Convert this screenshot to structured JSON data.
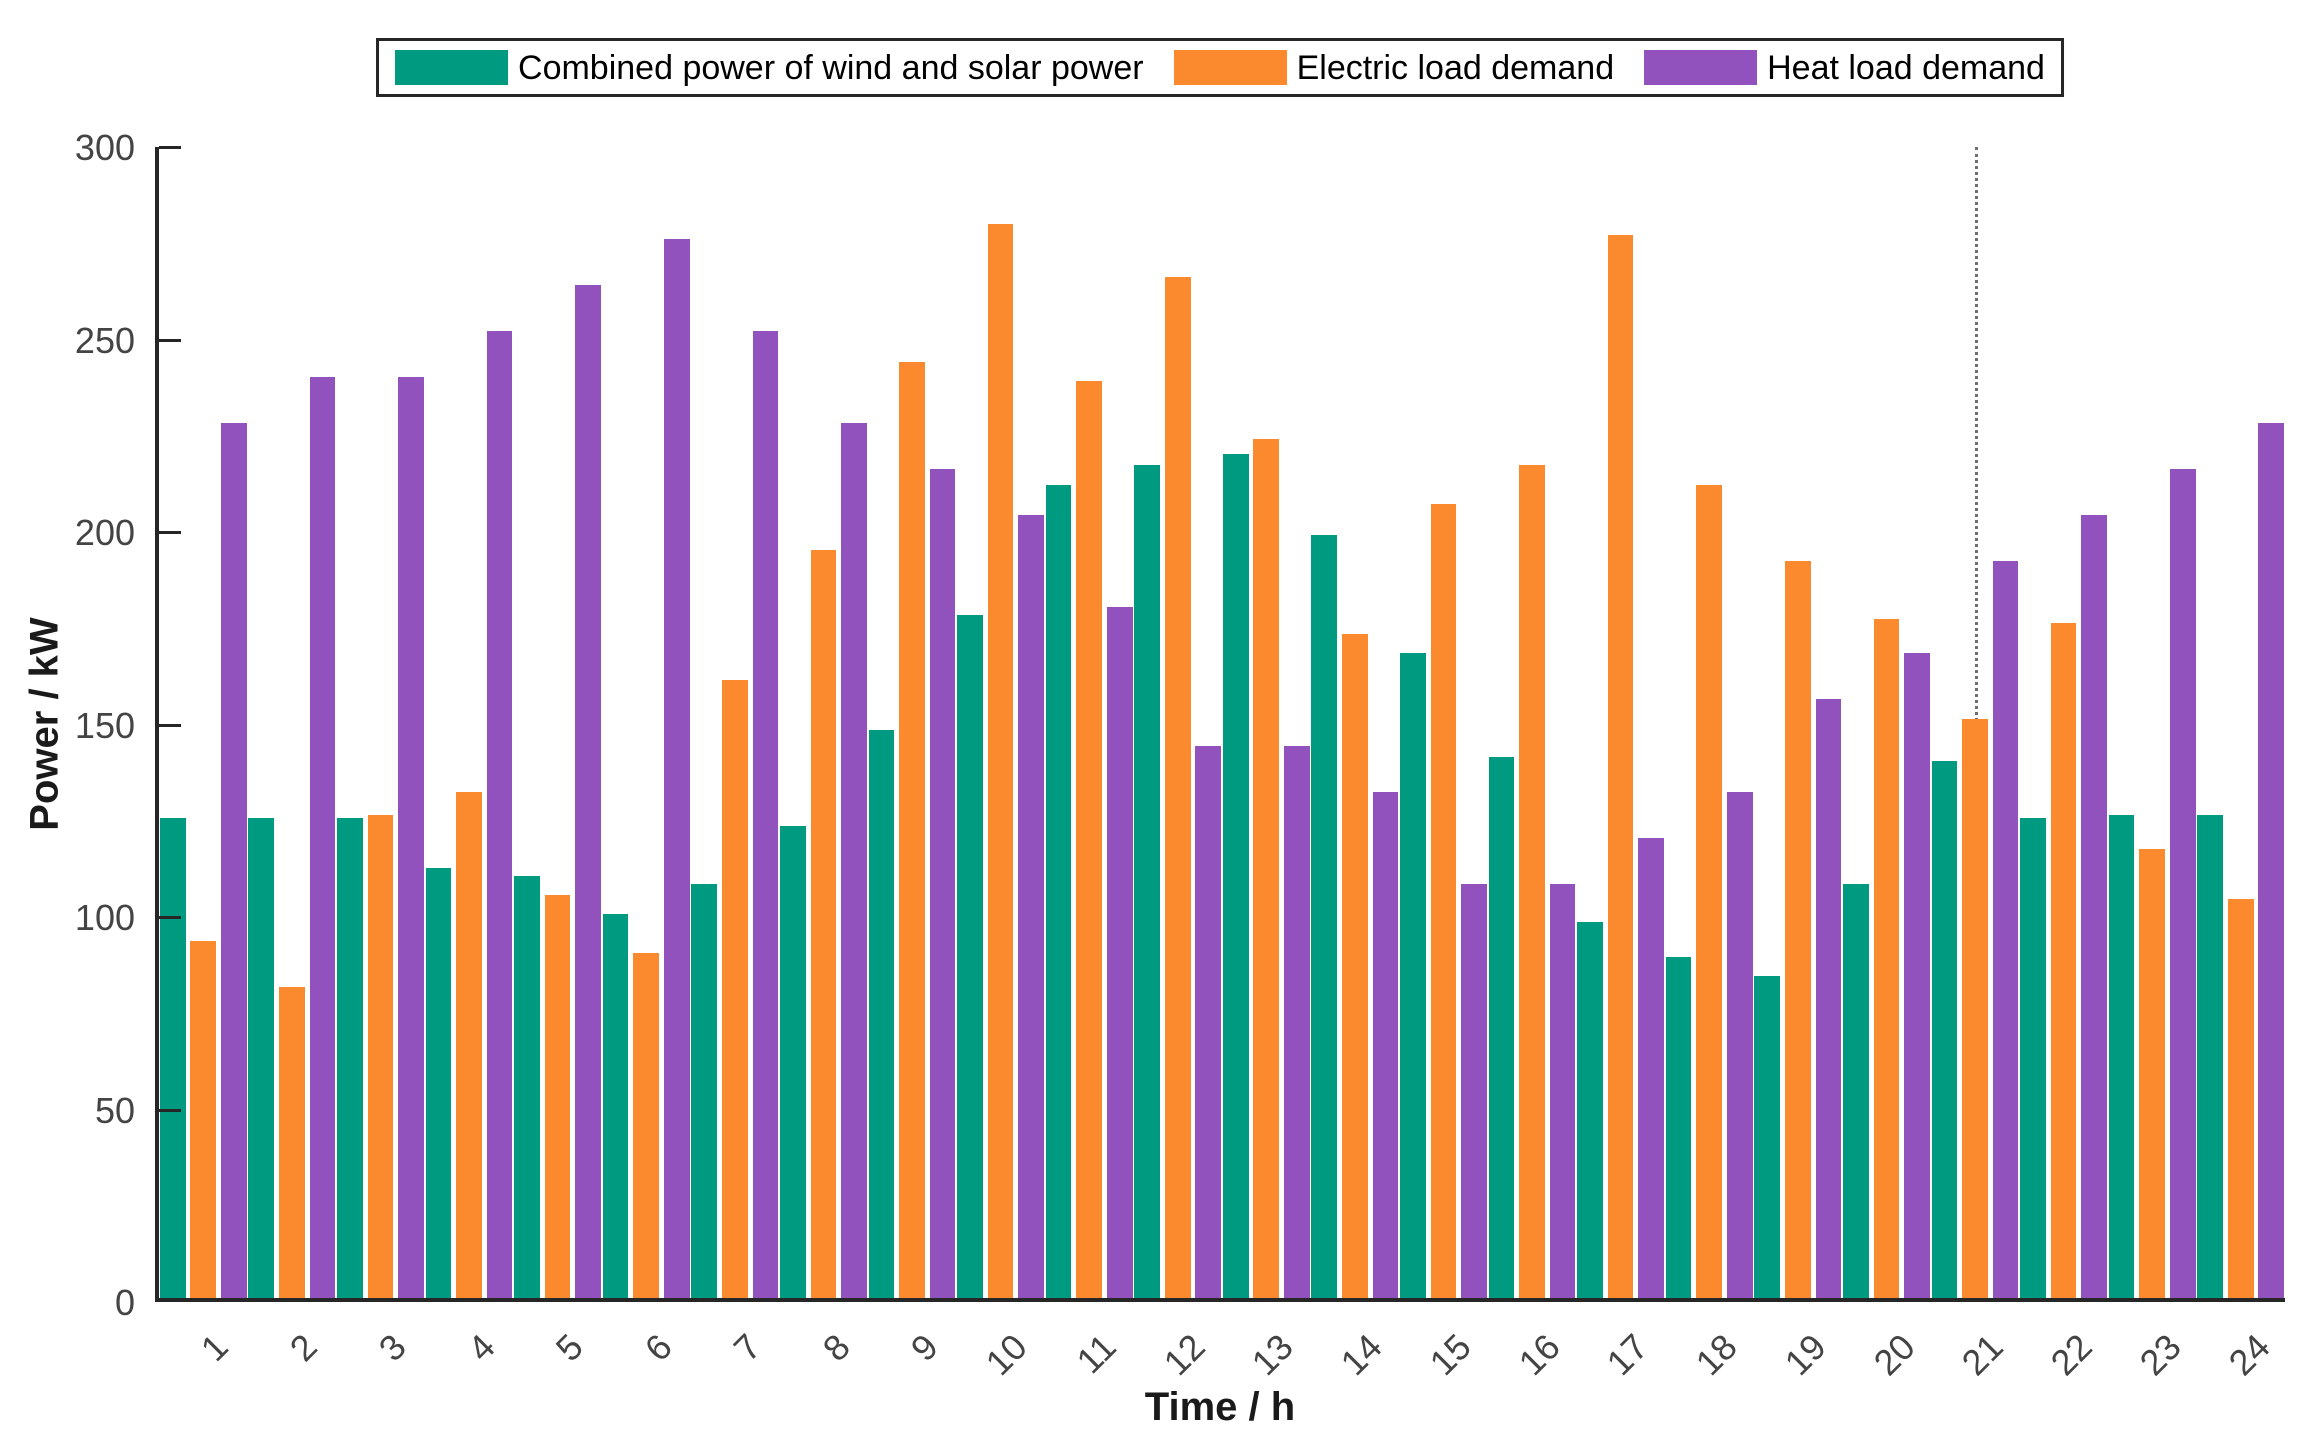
{
  "chart_data": {
    "type": "bar",
    "title": "",
    "xlabel": "Time / h",
    "ylabel": "Power / kW",
    "ylim": [
      0,
      300
    ],
    "yticks": [
      0,
      50,
      100,
      150,
      200,
      250,
      300
    ],
    "grid": false,
    "legend_position": "top-center",
    "categories": [
      "1",
      "2",
      "3",
      "4",
      "5",
      "6",
      "7",
      "8",
      "9",
      "10",
      "11",
      "12",
      "13",
      "14",
      "15",
      "16",
      "17",
      "18",
      "19",
      "20",
      "21",
      "22",
      "23",
      "24"
    ],
    "series": [
      {
        "name": "Combined power of wind and solar power",
        "key": "wind-solar",
        "color": "#009A80",
        "values": [
          125,
          125,
          125,
          112,
          110,
          100,
          108,
          123,
          148,
          178,
          212,
          217,
          220,
          199,
          168,
          141,
          98,
          89,
          84,
          108,
          140,
          125,
          126,
          126
        ]
      },
      {
        "name": "Electric load demand",
        "key": "electric-load",
        "color": "#FB8A2E",
        "values": [
          93,
          81,
          126,
          132,
          105,
          90,
          161,
          195,
          244,
          280,
          239,
          266,
          224,
          173,
          207,
          217,
          277,
          212,
          192,
          177,
          151,
          176,
          117,
          104
        ]
      },
      {
        "name": "Heat load demand",
        "key": "heat-load",
        "color": "#9152BE",
        "values": [
          228,
          240,
          240,
          252,
          264,
          276,
          252,
          228,
          216,
          204,
          180,
          144,
          144,
          132,
          108,
          108,
          120,
          132,
          156,
          168,
          192,
          204,
          216,
          228
        ]
      }
    ],
    "annotations": [
      {
        "type": "vline",
        "x_hour": 21,
        "style": "dotted",
        "color": "#6e6e6e"
      }
    ],
    "axis_color": "#262626",
    "tick_label_color": "#444444"
  }
}
